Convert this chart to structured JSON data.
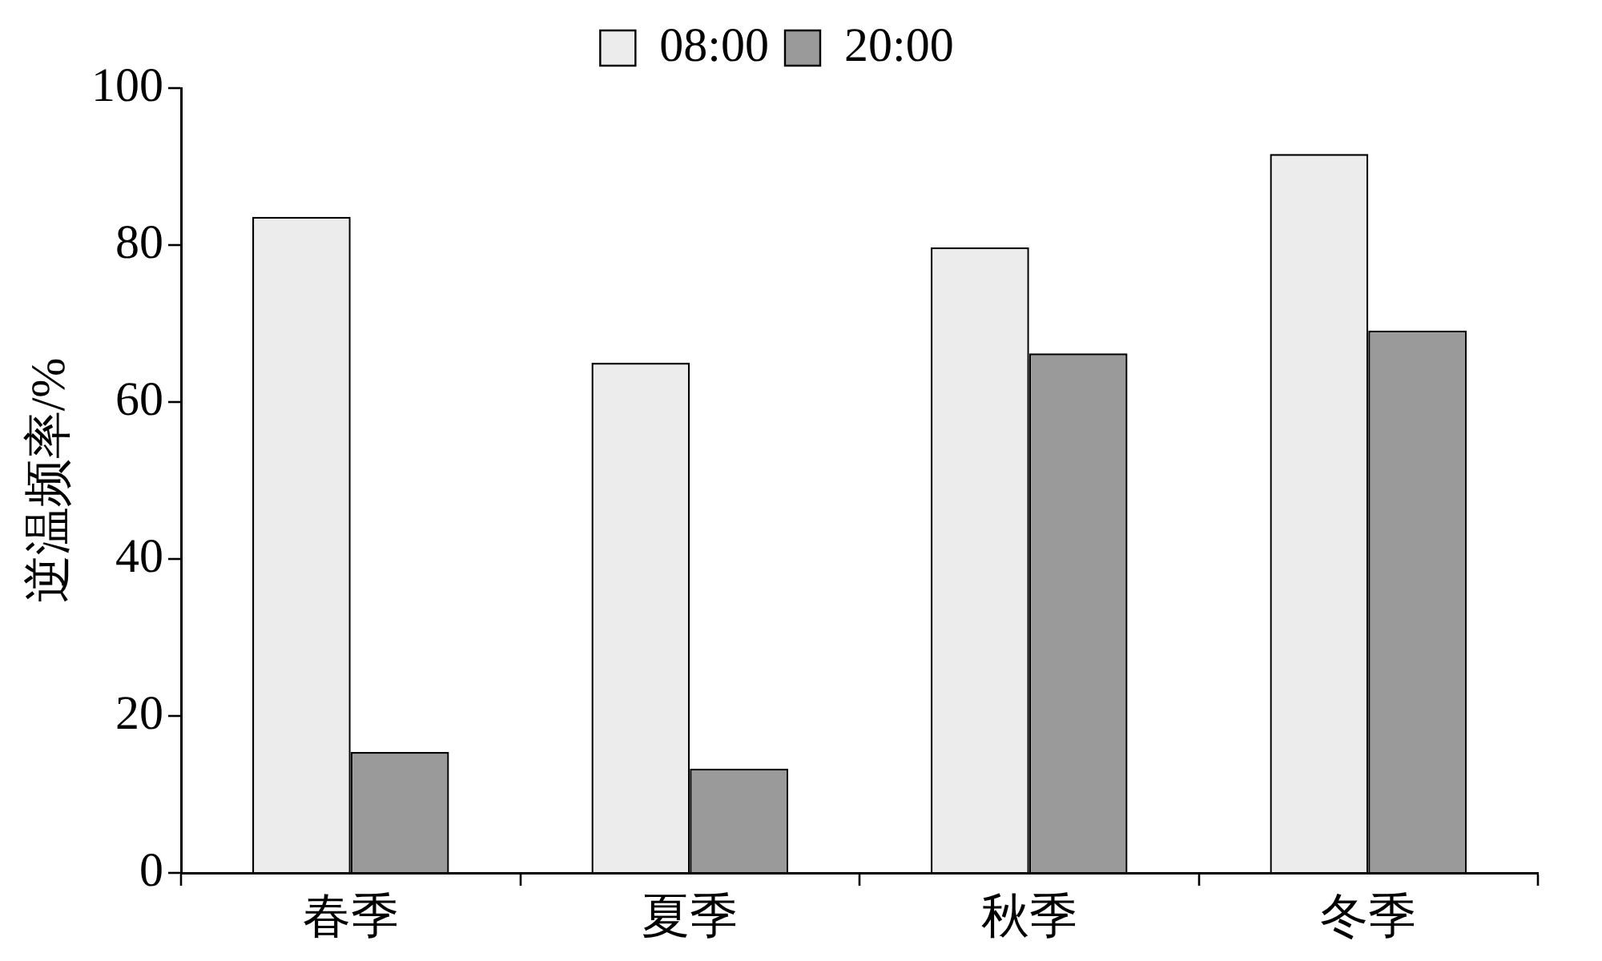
{
  "chart_data": {
    "type": "bar",
    "ylabel": "逆温频率/%",
    "categories": [
      "春季",
      "夏季",
      "秋季",
      "冬季"
    ],
    "series": [
      {
        "name": "08:00",
        "color": "#ececec",
        "values": [
          83.6,
          65.0,
          79.7,
          91.6
        ]
      },
      {
        "name": "20:00",
        "color": "#9a9a9a",
        "values": [
          15.4,
          13.3,
          66.2,
          69.1
        ]
      }
    ],
    "ylim": [
      0,
      100
    ],
    "yticks": [
      0,
      20,
      40,
      60,
      80,
      100
    ],
    "grid": false,
    "legend": "top"
  }
}
